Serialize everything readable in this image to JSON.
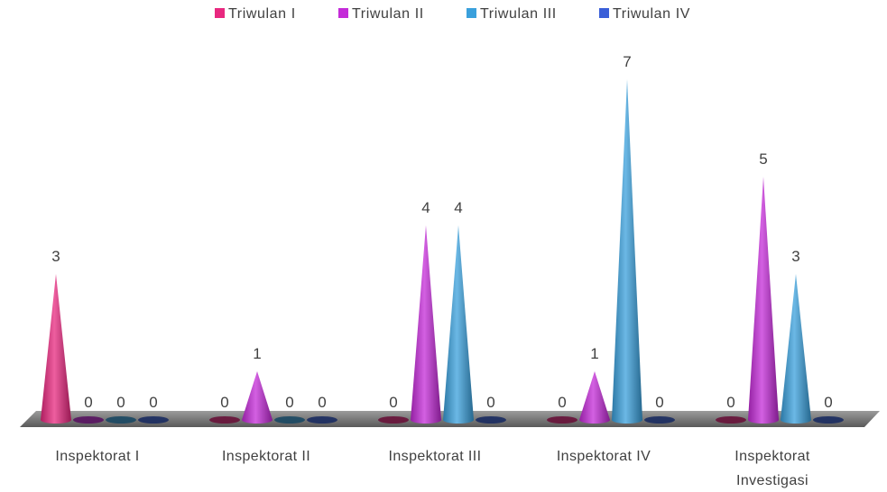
{
  "chart_data": {
    "type": "bar",
    "title": "",
    "xlabel": "",
    "ylabel": "",
    "legend_position": "top",
    "grid": false,
    "ylim": [
      0,
      7.3
    ],
    "categories": [
      [
        "Inspektorat I"
      ],
      [
        "Inspektorat II"
      ],
      [
        "Inspektorat III"
      ],
      [
        "Inspektorat IV"
      ],
      [
        "Inspektorat",
        "Investigasi"
      ]
    ],
    "series": [
      {
        "name": "Triwulan I",
        "color": "#e8287f",
        "values": [
          3,
          0,
          0,
          0,
          0
        ]
      },
      {
        "name": "Triwulan II",
        "color": "#c42bd8",
        "values": [
          0,
          1,
          4,
          1,
          5
        ]
      },
      {
        "name": "Triwulan III",
        "color": "#3aa0dc",
        "values": [
          0,
          0,
          4,
          7,
          3
        ]
      },
      {
        "name": "Triwulan IV",
        "color": "#3a5fd8",
        "values": [
          0,
          0,
          0,
          0,
          0
        ]
      }
    ]
  }
}
